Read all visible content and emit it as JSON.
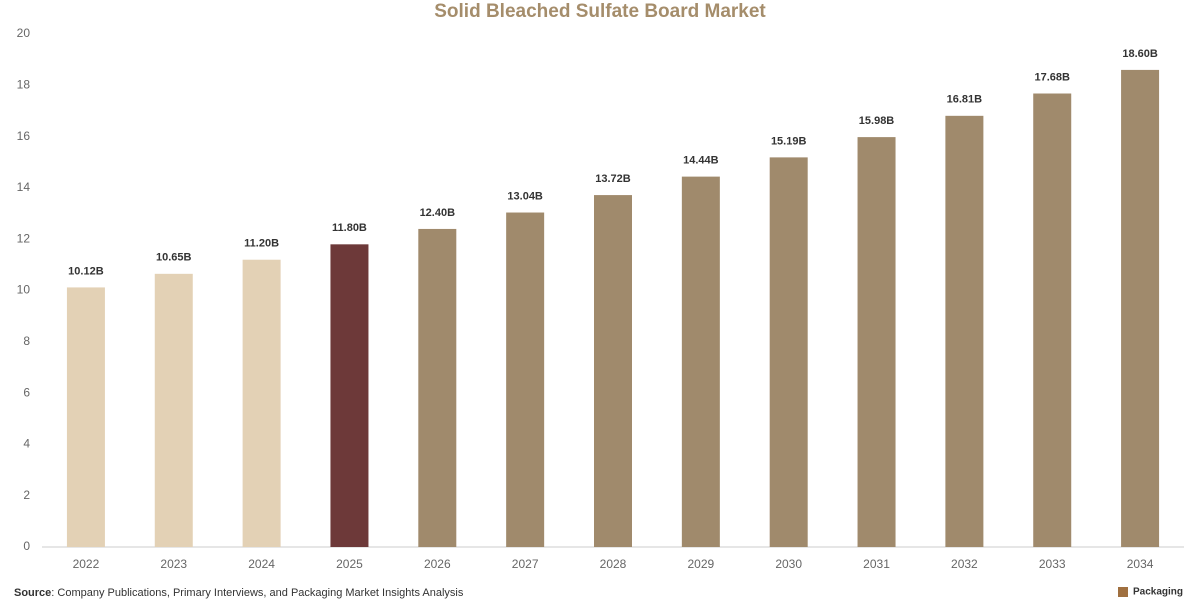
{
  "chart_data": {
    "type": "bar",
    "title": "Solid Bleached Sulfate Board Market",
    "categories": [
      "2022",
      "2023",
      "2024",
      "2025",
      "2026",
      "2027",
      "2028",
      "2029",
      "2030",
      "2031",
      "2032",
      "2033",
      "2034"
    ],
    "values": [
      10.12,
      10.65,
      11.2,
      11.8,
      12.4,
      13.04,
      13.72,
      14.44,
      15.19,
      15.98,
      16.81,
      17.68,
      18.6
    ],
    "value_labels": [
      "10.12B",
      "10.65B",
      "11.20B",
      "11.80B",
      "12.40B",
      "13.04B",
      "13.72B",
      "14.44B",
      "15.19B",
      "15.98B",
      "16.81B",
      "17.68B",
      "18.60B"
    ],
    "colors": [
      "#e3d1b5",
      "#e3d1b5",
      "#e3d1b5",
      "#6d3939",
      "#a08a6c",
      "#a08a6c",
      "#a08a6c",
      "#a08a6c",
      "#a08a6c",
      "#a08a6c",
      "#a08a6c",
      "#a08a6c",
      "#a08a6c"
    ],
    "ylim": [
      0,
      20
    ],
    "yticks": [
      0,
      2,
      4,
      6,
      8,
      10,
      12,
      14,
      16,
      18,
      20
    ],
    "grid": false,
    "source_label": "Source",
    "source_text": ": Company Publications, Primary Interviews, and Packaging Market Insights Analysis",
    "logo_text": "Packaging"
  }
}
